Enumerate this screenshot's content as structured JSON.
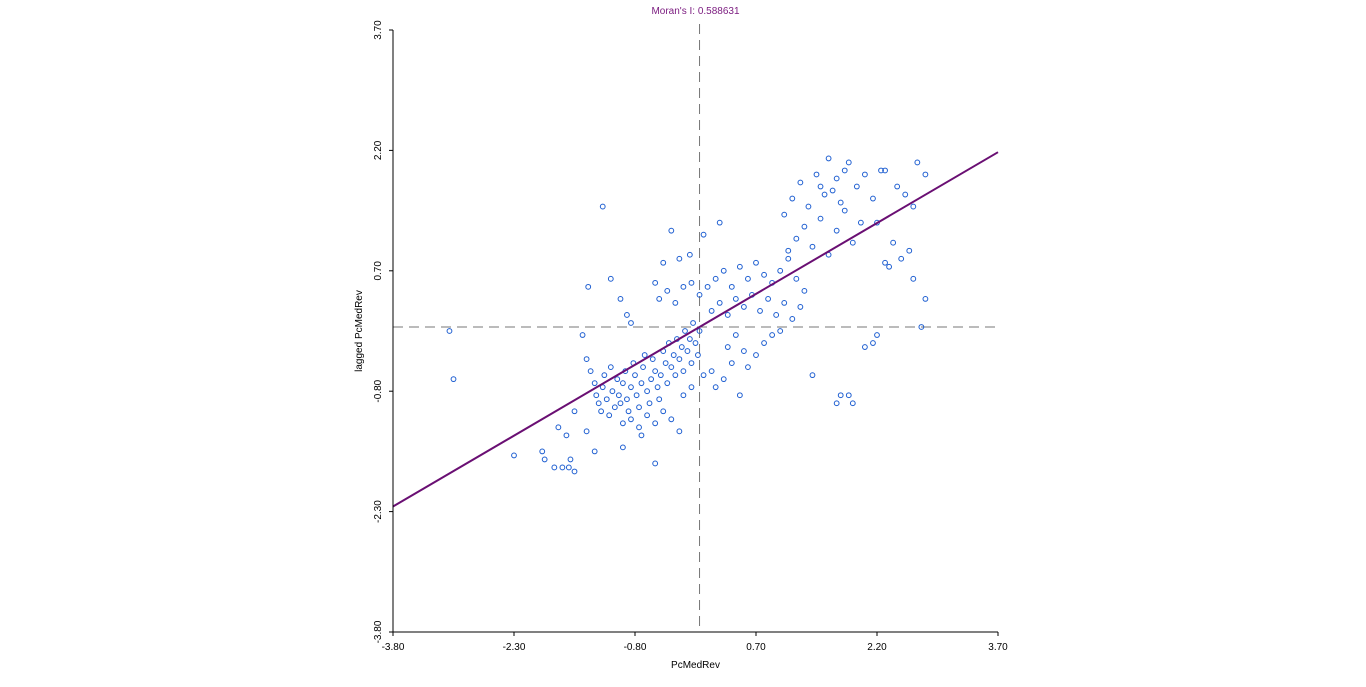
{
  "colors": {
    "point": "#1f5fd1",
    "regression": "#6a0f73",
    "title": "#7a1a7f",
    "mean_line": "#777777",
    "axis": "#000000"
  },
  "chart_data": {
    "type": "scatter",
    "title": "Moran's I: 0.588631",
    "xlabel": "PcMedRev",
    "ylabel": "lagged PcMedRev",
    "xlim": [
      -3.8,
      3.7
    ],
    "ylim": [
      -3.8,
      3.7
    ],
    "xticks": [
      "-3.80",
      "-2.30",
      "-0.80",
      "0.70",
      "2.20",
      "3.70"
    ],
    "yticks": [
      "-3.80",
      "-2.30",
      "-0.80",
      "0.70",
      "2.20",
      "3.70"
    ],
    "grid": false,
    "legend": "none",
    "regression": {
      "slope": 0.5886,
      "intercept": 0.0,
      "x_range": [
        -3.8,
        3.7
      ]
    },
    "mean_lines": {
      "x": 0.0,
      "y": 0.0
    },
    "points": [
      [
        -3.1,
        -0.05
      ],
      [
        -3.05,
        -0.65
      ],
      [
        -2.3,
        -1.6
      ],
      [
        -1.95,
        -1.55
      ],
      [
        -1.92,
        -1.65
      ],
      [
        -1.8,
        -1.75
      ],
      [
        -1.7,
        -1.75
      ],
      [
        -1.62,
        -1.75
      ],
      [
        -1.6,
        -1.65
      ],
      [
        -1.55,
        -1.8
      ],
      [
        -1.75,
        -1.25
      ],
      [
        -1.65,
        -1.35
      ],
      [
        -1.55,
        -1.05
      ],
      [
        -1.4,
        -1.3
      ],
      [
        -1.3,
        -1.55
      ],
      [
        -0.95,
        -1.5
      ],
      [
        -0.72,
        -1.35
      ],
      [
        -0.55,
        -1.7
      ],
      [
        -1.38,
        0.5
      ],
      [
        -1.2,
        1.5
      ],
      [
        -1.1,
        0.6
      ],
      [
        -0.98,
        0.35
      ],
      [
        -0.9,
        0.15
      ],
      [
        -0.85,
        0.05
      ],
      [
        -0.55,
        0.55
      ],
      [
        -0.45,
        0.8
      ],
      [
        -0.35,
        1.2
      ],
      [
        -0.25,
        0.85
      ],
      [
        -0.12,
        0.9
      ],
      [
        0.05,
        1.15
      ],
      [
        0.25,
        1.3
      ],
      [
        -0.5,
        0.35
      ],
      [
        -0.4,
        0.45
      ],
      [
        -0.3,
        0.3
      ],
      [
        -0.2,
        0.5
      ],
      [
        -0.1,
        0.55
      ],
      [
        0.0,
        0.4
      ],
      [
        0.1,
        0.5
      ],
      [
        0.2,
        0.6
      ],
      [
        0.3,
        0.7
      ],
      [
        0.4,
        0.5
      ],
      [
        0.5,
        0.75
      ],
      [
        0.6,
        0.6
      ],
      [
        0.7,
        0.8
      ],
      [
        0.8,
        0.65
      ],
      [
        0.9,
        0.55
      ],
      [
        1.0,
        0.7
      ],
      [
        1.1,
        0.85
      ],
      [
        1.2,
        0.6
      ],
      [
        1.3,
        0.45
      ],
      [
        0.15,
        0.2
      ],
      [
        0.25,
        0.3
      ],
      [
        0.35,
        0.15
      ],
      [
        0.45,
        0.35
      ],
      [
        0.55,
        0.25
      ],
      [
        0.65,
        0.4
      ],
      [
        0.75,
        0.2
      ],
      [
        0.85,
        0.35
      ],
      [
        0.95,
        0.15
      ],
      [
        1.05,
        0.3
      ],
      [
        1.15,
        0.1
      ],
      [
        1.25,
        0.25
      ],
      [
        -1.45,
        -0.1
      ],
      [
        -1.4,
        -0.4
      ],
      [
        -1.35,
        -0.55
      ],
      [
        -1.3,
        -0.7
      ],
      [
        -1.28,
        -0.85
      ],
      [
        -1.25,
        -0.95
      ],
      [
        -1.22,
        -1.05
      ],
      [
        -1.2,
        -0.75
      ],
      [
        -1.18,
        -0.6
      ],
      [
        -1.15,
        -0.9
      ],
      [
        -1.12,
        -1.1
      ],
      [
        -1.1,
        -0.5
      ],
      [
        -1.08,
        -0.8
      ],
      [
        -1.05,
        -1.0
      ],
      [
        -1.02,
        -0.65
      ],
      [
        -1.0,
        -0.85
      ],
      [
        -0.98,
        -0.95
      ],
      [
        -0.95,
        -0.7
      ],
      [
        -0.92,
        -0.55
      ],
      [
        -0.9,
        -0.9
      ],
      [
        -0.88,
        -1.05
      ],
      [
        -0.85,
        -0.75
      ],
      [
        -0.82,
        -0.45
      ],
      [
        -0.8,
        -0.6
      ],
      [
        -0.78,
        -0.85
      ],
      [
        -0.75,
        -1.0
      ],
      [
        -0.72,
        -0.7
      ],
      [
        -0.7,
        -0.5
      ],
      [
        -0.68,
        -0.35
      ],
      [
        -0.65,
        -0.8
      ],
      [
        -0.62,
        -0.95
      ],
      [
        -0.6,
        -0.65
      ],
      [
        -0.58,
        -0.4
      ],
      [
        -0.55,
        -0.55
      ],
      [
        -0.52,
        -0.75
      ],
      [
        -0.5,
        -0.9
      ],
      [
        -0.48,
        -0.6
      ],
      [
        -0.45,
        -0.3
      ],
      [
        -0.42,
        -0.45
      ],
      [
        -0.4,
        -0.7
      ],
      [
        -0.38,
        -0.2
      ],
      [
        -0.35,
        -0.5
      ],
      [
        -0.32,
        -0.35
      ],
      [
        -0.3,
        -0.6
      ],
      [
        -0.28,
        -0.15
      ],
      [
        -0.25,
        -0.4
      ],
      [
        -0.22,
        -0.25
      ],
      [
        -0.2,
        -0.55
      ],
      [
        -0.18,
        -0.05
      ],
      [
        -0.15,
        -0.3
      ],
      [
        -0.12,
        -0.15
      ],
      [
        -0.1,
        -0.45
      ],
      [
        -0.08,
        0.05
      ],
      [
        -0.05,
        -0.2
      ],
      [
        -0.02,
        -0.35
      ],
      [
        0.0,
        -0.05
      ],
      [
        -0.95,
        -1.2
      ],
      [
        -0.85,
        -1.15
      ],
      [
        -0.75,
        -1.25
      ],
      [
        -0.65,
        -1.1
      ],
      [
        -0.55,
        -1.2
      ],
      [
        -0.45,
        -1.05
      ],
      [
        -0.35,
        -1.15
      ],
      [
        -0.25,
        -1.3
      ],
      [
        -0.2,
        -0.85
      ],
      [
        -0.1,
        -0.75
      ],
      [
        0.05,
        -0.6
      ],
      [
        0.15,
        -0.55
      ],
      [
        0.2,
        -0.75
      ],
      [
        0.3,
        -0.65
      ],
      [
        0.4,
        -0.45
      ],
      [
        0.5,
        -0.85
      ],
      [
        0.6,
        -0.5
      ],
      [
        0.7,
        -0.35
      ],
      [
        0.8,
        -0.2
      ],
      [
        0.9,
        -0.1
      ],
      [
        1.0,
        -0.05
      ],
      [
        0.35,
        -0.25
      ],
      [
        0.45,
        -0.1
      ],
      [
        0.55,
        -0.3
      ],
      [
        1.1,
        0.95
      ],
      [
        1.2,
        1.1
      ],
      [
        1.3,
        1.25
      ],
      [
        1.4,
        1.0
      ],
      [
        1.5,
        1.35
      ],
      [
        1.6,
        0.9
      ],
      [
        1.7,
        1.2
      ],
      [
        1.8,
        1.45
      ],
      [
        1.9,
        1.05
      ],
      [
        2.0,
        1.3
      ],
      [
        1.05,
        1.4
      ],
      [
        1.15,
        1.6
      ],
      [
        1.25,
        1.8
      ],
      [
        1.35,
        1.5
      ],
      [
        1.45,
        1.9
      ],
      [
        1.55,
        1.65
      ],
      [
        1.65,
        1.7
      ],
      [
        1.75,
        1.55
      ],
      [
        1.85,
        2.05
      ],
      [
        1.95,
        1.75
      ],
      [
        2.05,
        1.9
      ],
      [
        2.15,
        1.6
      ],
      [
        1.6,
        2.1
      ],
      [
        1.7,
        1.85
      ],
      [
        1.8,
        1.95
      ],
      [
        1.5,
        1.75
      ],
      [
        2.3,
        0.8
      ],
      [
        2.35,
        0.75
      ],
      [
        2.4,
        1.05
      ],
      [
        2.5,
        0.85
      ],
      [
        2.6,
        0.95
      ],
      [
        2.65,
        0.6
      ],
      [
        2.8,
        0.35
      ],
      [
        2.75,
        0.0
      ],
      [
        1.75,
        -0.85
      ],
      [
        1.85,
        -0.85
      ],
      [
        1.9,
        -0.95
      ],
      [
        1.7,
        -0.95
      ],
      [
        1.4,
        -0.6
      ],
      [
        2.15,
        -0.2
      ],
      [
        2.05,
        -0.25
      ],
      [
        2.2,
        -0.1
      ],
      [
        2.25,
        1.95
      ],
      [
        2.3,
        1.95
      ],
      [
        2.7,
        2.05
      ],
      [
        2.8,
        1.9
      ],
      [
        2.55,
        1.65
      ],
      [
        2.45,
        1.75
      ],
      [
        2.65,
        1.5
      ],
      [
        2.2,
        1.3
      ]
    ]
  }
}
